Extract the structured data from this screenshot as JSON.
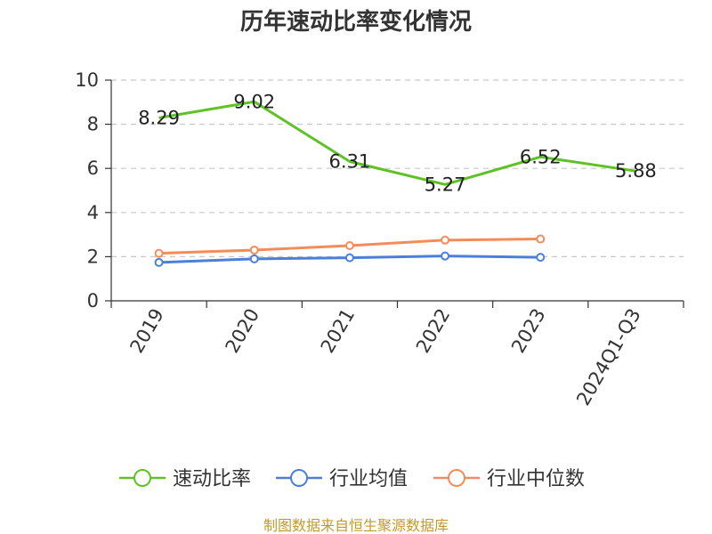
{
  "chart_data": {
    "type": "line",
    "title": "历年速动比率变化情况",
    "categories": [
      "2019",
      "2020",
      "2021",
      "2022",
      "2023",
      "2024Q1-Q3"
    ],
    "ylim": [
      0,
      10
    ],
    "yticks": [
      0,
      2,
      4,
      6,
      8,
      10
    ],
    "grid": true,
    "legend_position": "bottom",
    "series": [
      {
        "name": "速动比率",
        "color": "#5ec224",
        "values": [
          8.29,
          9.02,
          6.31,
          5.27,
          6.52,
          5.88
        ],
        "labels": [
          "8.29",
          "9.02",
          "6.31",
          "5.27",
          "6.52",
          "5.88"
        ]
      },
      {
        "name": "行业均值",
        "color": "#4a7fdc",
        "values": [
          1.74,
          1.9,
          1.95,
          2.03,
          1.97,
          null
        ]
      },
      {
        "name": "行业中位数",
        "color": "#f48c5a",
        "values": [
          2.15,
          2.3,
          2.5,
          2.75,
          2.8,
          null
        ]
      }
    ],
    "source": "制图数据来自恒生聚源数据库"
  }
}
